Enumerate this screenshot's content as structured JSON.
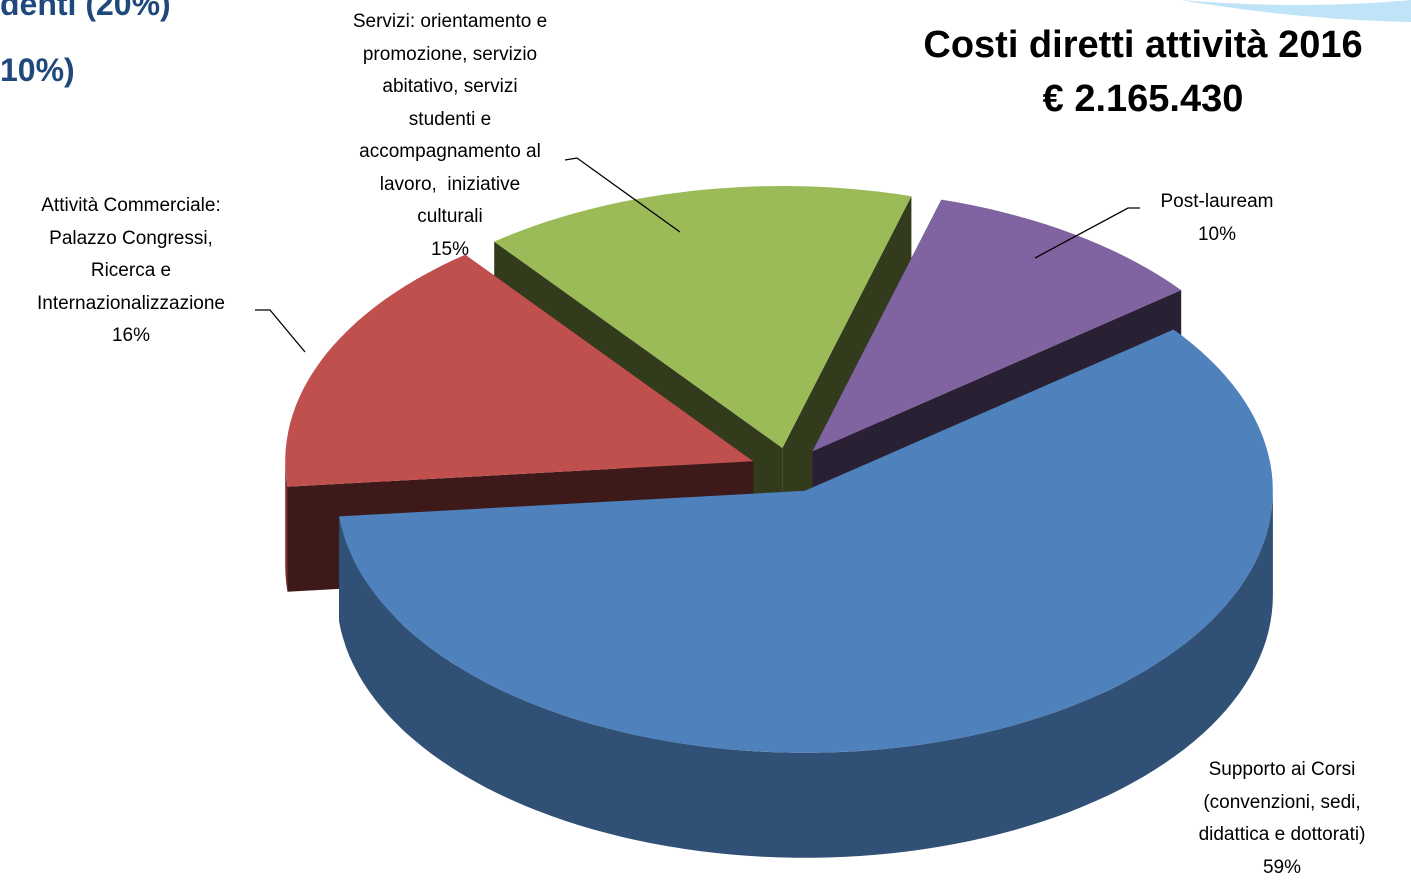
{
  "slide_fragments": [
    "denti (20%)",
    "10%)"
  ],
  "chart_data": {
    "type": "pie",
    "style": "3d-exploded",
    "title": "Costi diretti attività 2016",
    "subtitle": "€ 2.165.430",
    "categories": [
      "Supporto ai Corsi\n(convenzioni, sedi,\ndidattica e dottorati)",
      "Attività Commerciale:\nPalazzo Congressi,\nRicerca e\nInternazionalizzazione",
      "Servizi: orientamento e\npromozione, servizio\nabitativo, servizi\nstudenti e\naccompagnamento al\nlavoro,  iniziative\nculturali",
      "Post-lauream"
    ],
    "values": [
      59,
      16,
      15,
      10
    ],
    "value_labels": [
      "59%",
      "16%",
      "15%",
      "10%"
    ],
    "colors": [
      "#4f81bd",
      "#c0504d",
      "#9bbb59",
      "#8064a2"
    ]
  }
}
